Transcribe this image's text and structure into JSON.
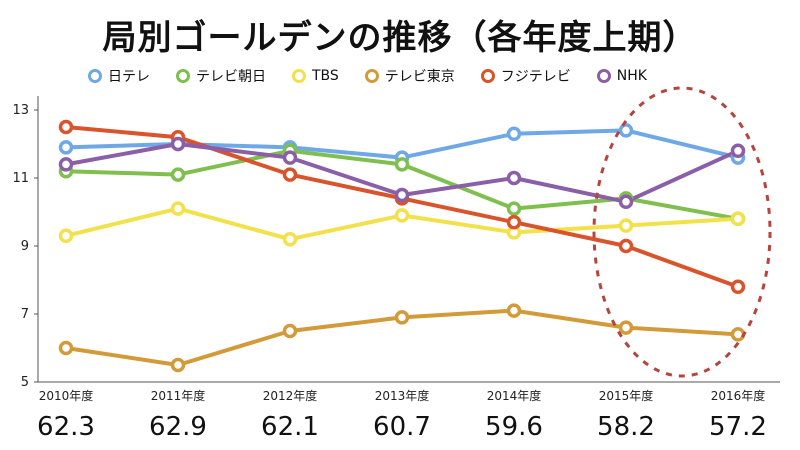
{
  "chart_data": {
    "type": "line",
    "title": "局別ゴールデンの推移（各年度上期）",
    "categories": [
      "2010年度",
      "2011年度",
      "2012年度",
      "2013年度",
      "2014年度",
      "2015年度",
      "2016年度"
    ],
    "ylim": [
      5,
      13
    ],
    "yticks": [
      5,
      7,
      9,
      11,
      13
    ],
    "grid": false,
    "legend_position": "top",
    "series": [
      {
        "name": "日テレ",
        "color": "#6ea8e6",
        "values": [
          11.9,
          12.0,
          11.9,
          11.6,
          12.3,
          12.4,
          11.6
        ]
      },
      {
        "name": "テレビ朝日",
        "color": "#7fbf4d",
        "values": [
          11.2,
          11.1,
          11.8,
          11.4,
          10.1,
          10.4,
          9.8
        ]
      },
      {
        "name": "TBS",
        "color": "#f2e14a",
        "values": [
          9.3,
          10.1,
          9.2,
          9.9,
          9.4,
          9.6,
          9.8
        ]
      },
      {
        "name": "テレビ東京",
        "color": "#d39a3a",
        "values": [
          6.0,
          5.5,
          6.5,
          6.9,
          7.1,
          6.6,
          6.4
        ]
      },
      {
        "name": "フジテレビ",
        "color": "#d9532b",
        "values": [
          12.5,
          12.2,
          11.1,
          10.4,
          9.7,
          9.0,
          7.8
        ]
      },
      {
        "name": "NHK",
        "color": "#8b5fa8",
        "values": [
          11.4,
          12.0,
          11.6,
          10.5,
          11.0,
          10.3,
          11.8
        ]
      }
    ],
    "totals": [
      "62.3",
      "62.9",
      "62.1",
      "60.7",
      "59.6",
      "58.2",
      "57.2"
    ],
    "highlight": {
      "shape": "dashed-ellipse",
      "color": "#b5443c",
      "covers_categories": [
        "2015年度",
        "2016年度"
      ]
    }
  }
}
